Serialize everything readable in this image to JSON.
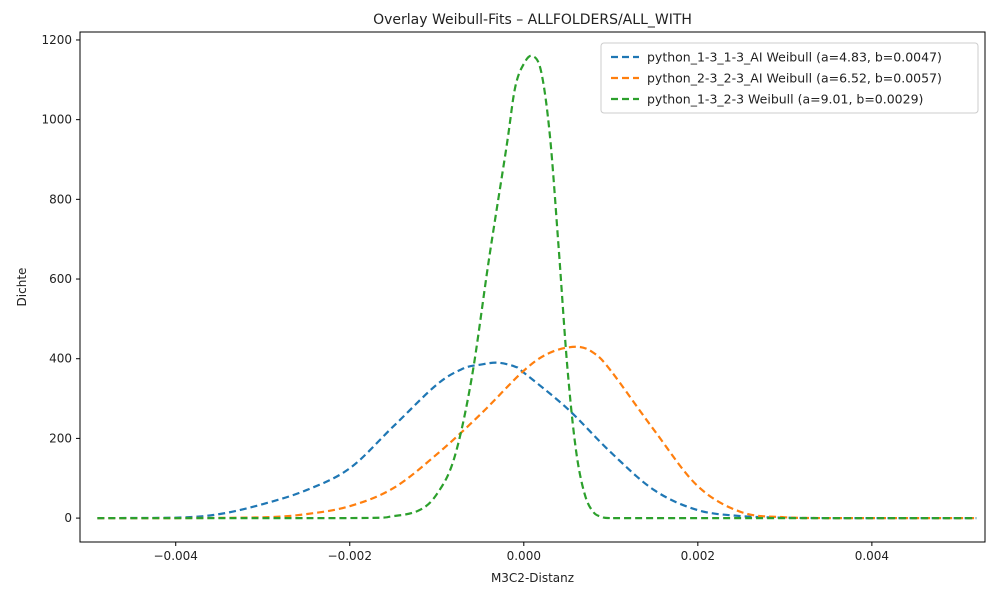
{
  "chart_data": {
    "type": "line",
    "title": "Overlay Weibull-Fits – ALLFOLDERS/ALL_WITH",
    "xlabel": "M3C2-Distanz",
    "ylabel": "Dichte",
    "xlim": [
      -0.0051,
      0.0053
    ],
    "ylim": [
      -60,
      1220
    ],
    "xticks": [
      -0.004,
      -0.002,
      0.0,
      0.002,
      0.004
    ],
    "xtick_labels": [
      "−0.004",
      "−0.002",
      "0.000",
      "0.002",
      "0.004"
    ],
    "yticks": [
      0,
      200,
      400,
      600,
      800,
      1000,
      1200
    ],
    "ytick_labels": [
      "0",
      "200",
      "400",
      "600",
      "800",
      "1000",
      "1200"
    ],
    "grid": false,
    "legend_position": "top-right",
    "line_style": "dashed",
    "series": [
      {
        "name": "python_1-3_1-3_AI Weibull (a=4.83, b=0.0047)",
        "color": "#1f77b4",
        "x": [
          -0.0049,
          -0.004,
          -0.0035,
          -0.003,
          -0.0025,
          -0.002,
          -0.0015,
          -0.001,
          -0.0007,
          -0.0005,
          -0.0003,
          -0.0001,
          0.0,
          0.0005,
          0.001,
          0.0015,
          0.002,
          0.0025,
          0.003,
          0.0035,
          0.004,
          0.0052
        ],
        "y": [
          0,
          1,
          10,
          35,
          70,
          125,
          230,
          335,
          375,
          385,
          390,
          380,
          365,
          275,
          165,
          70,
          20,
          5,
          1,
          0,
          0,
          0
        ]
      },
      {
        "name": "python_2-3_2-3_AI Weibull (a=6.52, b=0.0057)",
        "color": "#ff7f0e",
        "x": [
          -0.0049,
          -0.004,
          -0.003,
          -0.0025,
          -0.002,
          -0.0015,
          -0.001,
          -0.0005,
          0.0,
          0.0003,
          0.0006,
          0.0008,
          0.001,
          0.0015,
          0.002,
          0.0025,
          0.003,
          0.0035,
          0.0052
        ],
        "y": [
          0,
          0,
          2,
          10,
          30,
          75,
          160,
          260,
          370,
          415,
          430,
          415,
          370,
          220,
          80,
          15,
          2,
          0,
          0
        ]
      },
      {
        "name": "python_1-3_2-3 Weibull (a=9.01, b=0.0029)",
        "color": "#2ca02c",
        "x": [
          -0.0049,
          -0.002,
          -0.0015,
          -0.0012,
          -0.001,
          -0.0008,
          -0.0006,
          -0.0004,
          -0.0002,
          -0.0001,
          0.0,
          0.0001,
          0.0002,
          0.0003,
          0.0004,
          0.0005,
          0.0006,
          0.0007,
          0.0008,
          0.0009,
          0.001,
          0.0015,
          0.0052
        ],
        "y": [
          0,
          0,
          5,
          20,
          60,
          150,
          350,
          650,
          930,
          1080,
          1140,
          1160,
          1120,
          960,
          680,
          380,
          170,
          60,
          15,
          3,
          0,
          0,
          0
        ]
      }
    ]
  }
}
